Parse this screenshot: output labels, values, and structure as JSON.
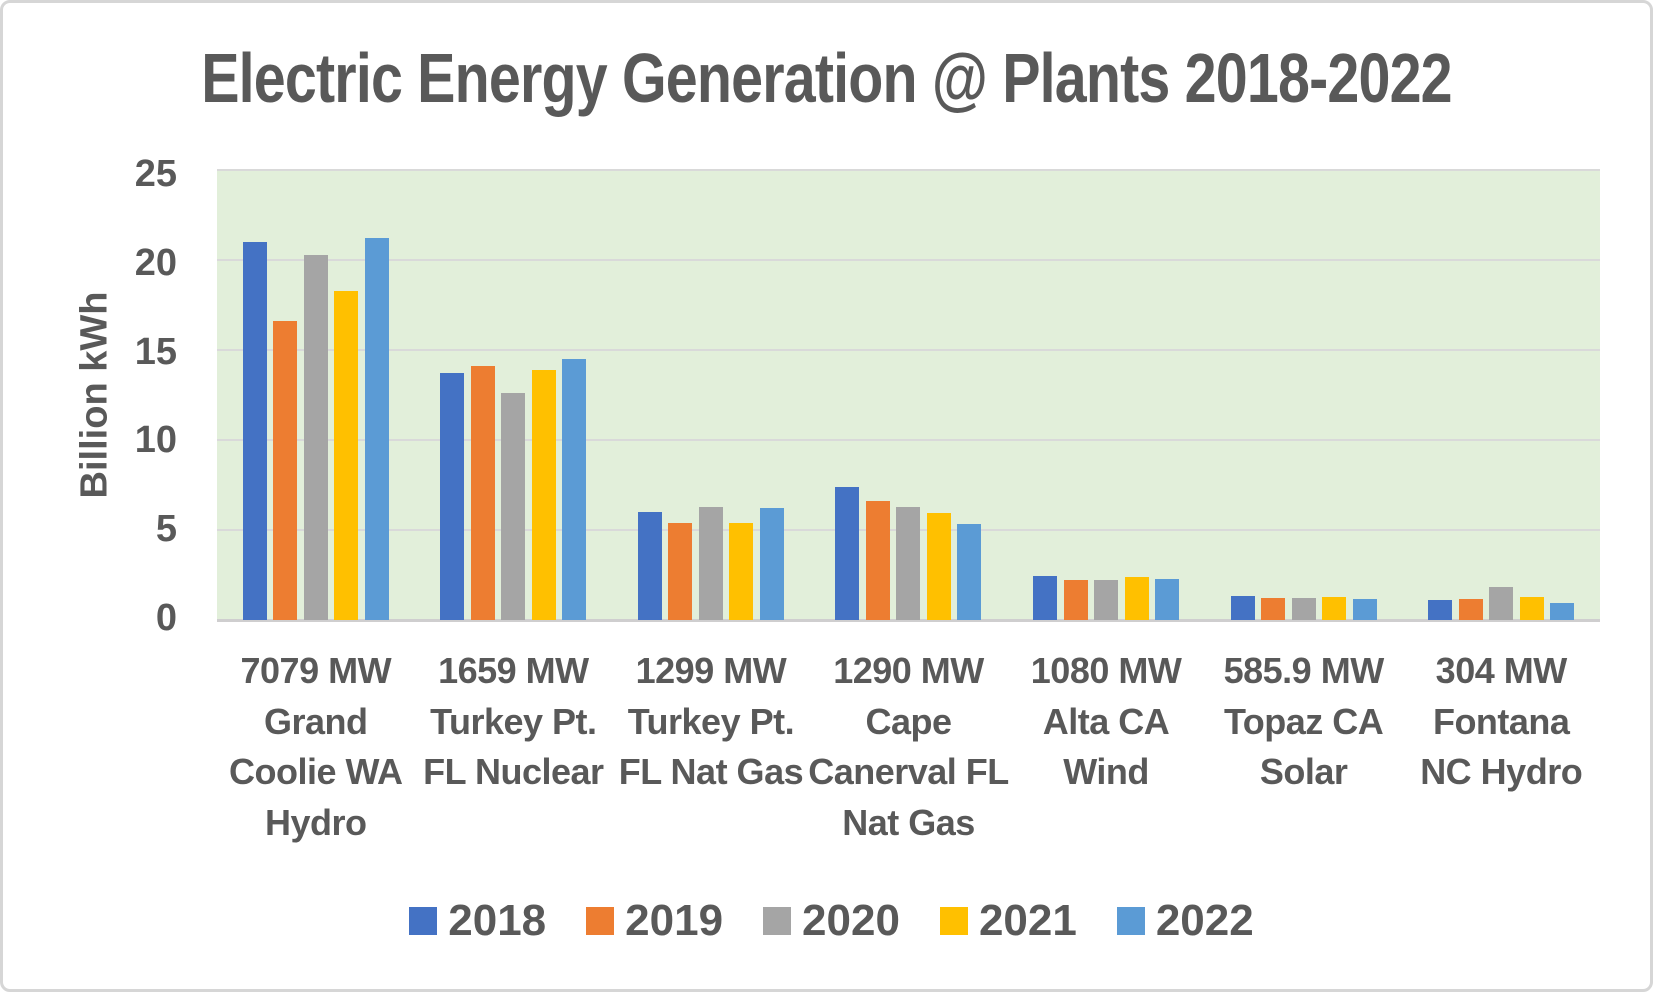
{
  "chart_data": {
    "type": "bar",
    "title": "Electric Energy Generation @ Plants 2018-2022",
    "ylabel": "Billion kWh",
    "xlabel": "",
    "ylim": [
      0,
      25
    ],
    "yticks": [
      0,
      5,
      10,
      15,
      20,
      25
    ],
    "grid": true,
    "legend_position": "bottom",
    "plot_background": "#e2efda",
    "gridline_color": "#d9d9d9",
    "axis_line_color": "#cfcecf",
    "text_color": "#595959",
    "categories": [
      {
        "id": "grand-coolie-hydro",
        "label_lines": [
          "7079 MW",
          "Grand",
          "Coolie WA",
          "Hydro"
        ]
      },
      {
        "id": "turkey-pt-nuclear",
        "label_lines": [
          "1659 MW",
          "Turkey Pt.",
          "FL Nuclear"
        ]
      },
      {
        "id": "turkey-pt-nat-gas",
        "label_lines": [
          "1299 MW",
          "Turkey Pt.",
          "FL Nat Gas"
        ]
      },
      {
        "id": "cape-canerval",
        "label_lines": [
          "1290 MW",
          "Cape",
          "Canerval FL",
          "Nat Gas"
        ]
      },
      {
        "id": "alta-wind",
        "label_lines": [
          "1080 MW",
          "Alta CA",
          "Wind"
        ]
      },
      {
        "id": "topaz-solar",
        "label_lines": [
          "585.9 MW",
          "Topaz CA",
          "Solar"
        ]
      },
      {
        "id": "fontana-hydro",
        "label_lines": [
          "304 MW",
          "Fontana",
          "NC Hydro"
        ]
      }
    ],
    "series": [
      {
        "name": "2018",
        "color": "#4472c4",
        "values": [
          21.0,
          13.7,
          6.0,
          7.4,
          2.45,
          1.35,
          1.1
        ]
      },
      {
        "name": "2019",
        "color": "#ed7d31",
        "values": [
          16.6,
          14.1,
          5.4,
          6.6,
          2.25,
          1.2,
          1.15
        ]
      },
      {
        "name": "2020",
        "color": "#a5a5a5",
        "values": [
          20.3,
          12.6,
          6.3,
          6.3,
          2.2,
          1.25,
          1.85
        ]
      },
      {
        "name": "2021",
        "color": "#ffc000",
        "values": [
          18.3,
          13.9,
          5.4,
          5.95,
          2.4,
          1.3,
          1.3
        ]
      },
      {
        "name": "2022",
        "color": "#5b9bd5",
        "values": [
          21.2,
          14.5,
          6.2,
          5.35,
          2.3,
          1.15,
          0.95
        ]
      }
    ]
  }
}
